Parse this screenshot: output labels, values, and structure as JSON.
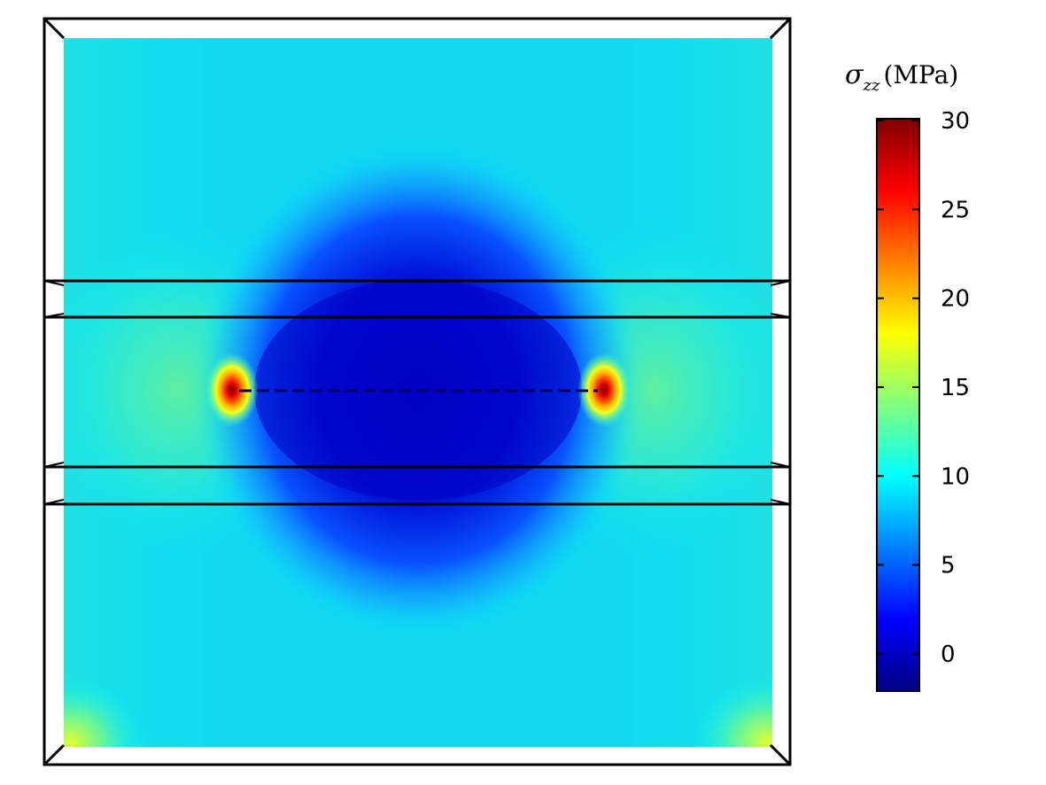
{
  "chart_data": {
    "type": "heatmap",
    "title": "",
    "colorbar": {
      "label_symbol": "σ",
      "label_subscript": "zz",
      "label_unit": "(MPa)",
      "min": -2,
      "max": 30,
      "ticks": [
        0,
        5,
        10,
        15,
        20,
        25,
        30
      ],
      "tick_labels": [
        "0",
        "5",
        "10",
        "15",
        "20",
        "25",
        "30"
      ],
      "colormap": "jet",
      "placement": "right"
    },
    "field": {
      "background_value": 10,
      "low_region_value": 0,
      "crack_tip_peak_value": 30,
      "near_tip_value": 20,
      "corner_value": 17
    },
    "grid": false,
    "colors": {
      "frame": "#000000",
      "low": "#00007f",
      "mid": "#00ffff",
      "high": "#7f0000"
    }
  }
}
